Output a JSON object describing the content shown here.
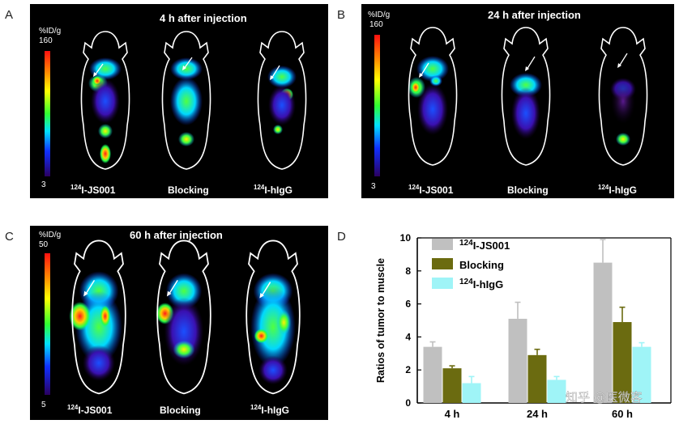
{
  "panels": [
    {
      "letter": "A",
      "title": "4 h after injection",
      "unit": "%ID/g",
      "scale_max": "160",
      "scale_min": "3",
      "labels": [
        {
          "sup": "124",
          "text": "I-JS001"
        },
        {
          "sup": "",
          "text": "Blocking"
        },
        {
          "sup": "124",
          "text": "I-hIgG"
        }
      ]
    },
    {
      "letter": "B",
      "title": "24 h after injection",
      "unit": "%ID/g",
      "scale_max": "160",
      "scale_min": "3",
      "labels": [
        {
          "sup": "124",
          "text": "I-JS001"
        },
        {
          "sup": "",
          "text": "Blocking"
        },
        {
          "sup": "124",
          "text": "I-hIgG"
        }
      ]
    },
    {
      "letter": "C",
      "title": "60 h after injection",
      "unit": "%ID/g",
      "scale_max": "50",
      "scale_min": "5",
      "labels": [
        {
          "sup": "124",
          "text": "I-JS001"
        },
        {
          "sup": "",
          "text": "Blocking"
        },
        {
          "sup": "124",
          "text": "I-hIgG"
        }
      ]
    }
  ],
  "chart_letter": "D",
  "watermark": "知乎 @医微客",
  "colors": {
    "js001": "#c0c0c0",
    "blocking": "#6b6b10",
    "higg": "#9ff4f7"
  },
  "chart_data": {
    "type": "bar",
    "title": "",
    "xlabel": "",
    "ylabel": "Ratios of tumor to muscle",
    "ylim": [
      0,
      10
    ],
    "yticks": [
      "0",
      "2",
      "4",
      "6",
      "8",
      "10"
    ],
    "categories": [
      "4 h",
      "24 h",
      "60 h"
    ],
    "series": [
      {
        "name": "I-JS001",
        "sup": "124",
        "values": [
          3.4,
          5.1,
          8.5
        ],
        "errors": [
          0.3,
          1.0,
          1.4
        ]
      },
      {
        "name": "Blocking",
        "sup": "",
        "values": [
          2.1,
          2.9,
          4.9
        ],
        "errors": [
          0.15,
          0.35,
          0.9
        ]
      },
      {
        "name": "I-hIgG",
        "sup": "124",
        "values": [
          1.2,
          1.4,
          3.4
        ],
        "errors": [
          0.4,
          0.2,
          0.25
        ]
      }
    ]
  }
}
